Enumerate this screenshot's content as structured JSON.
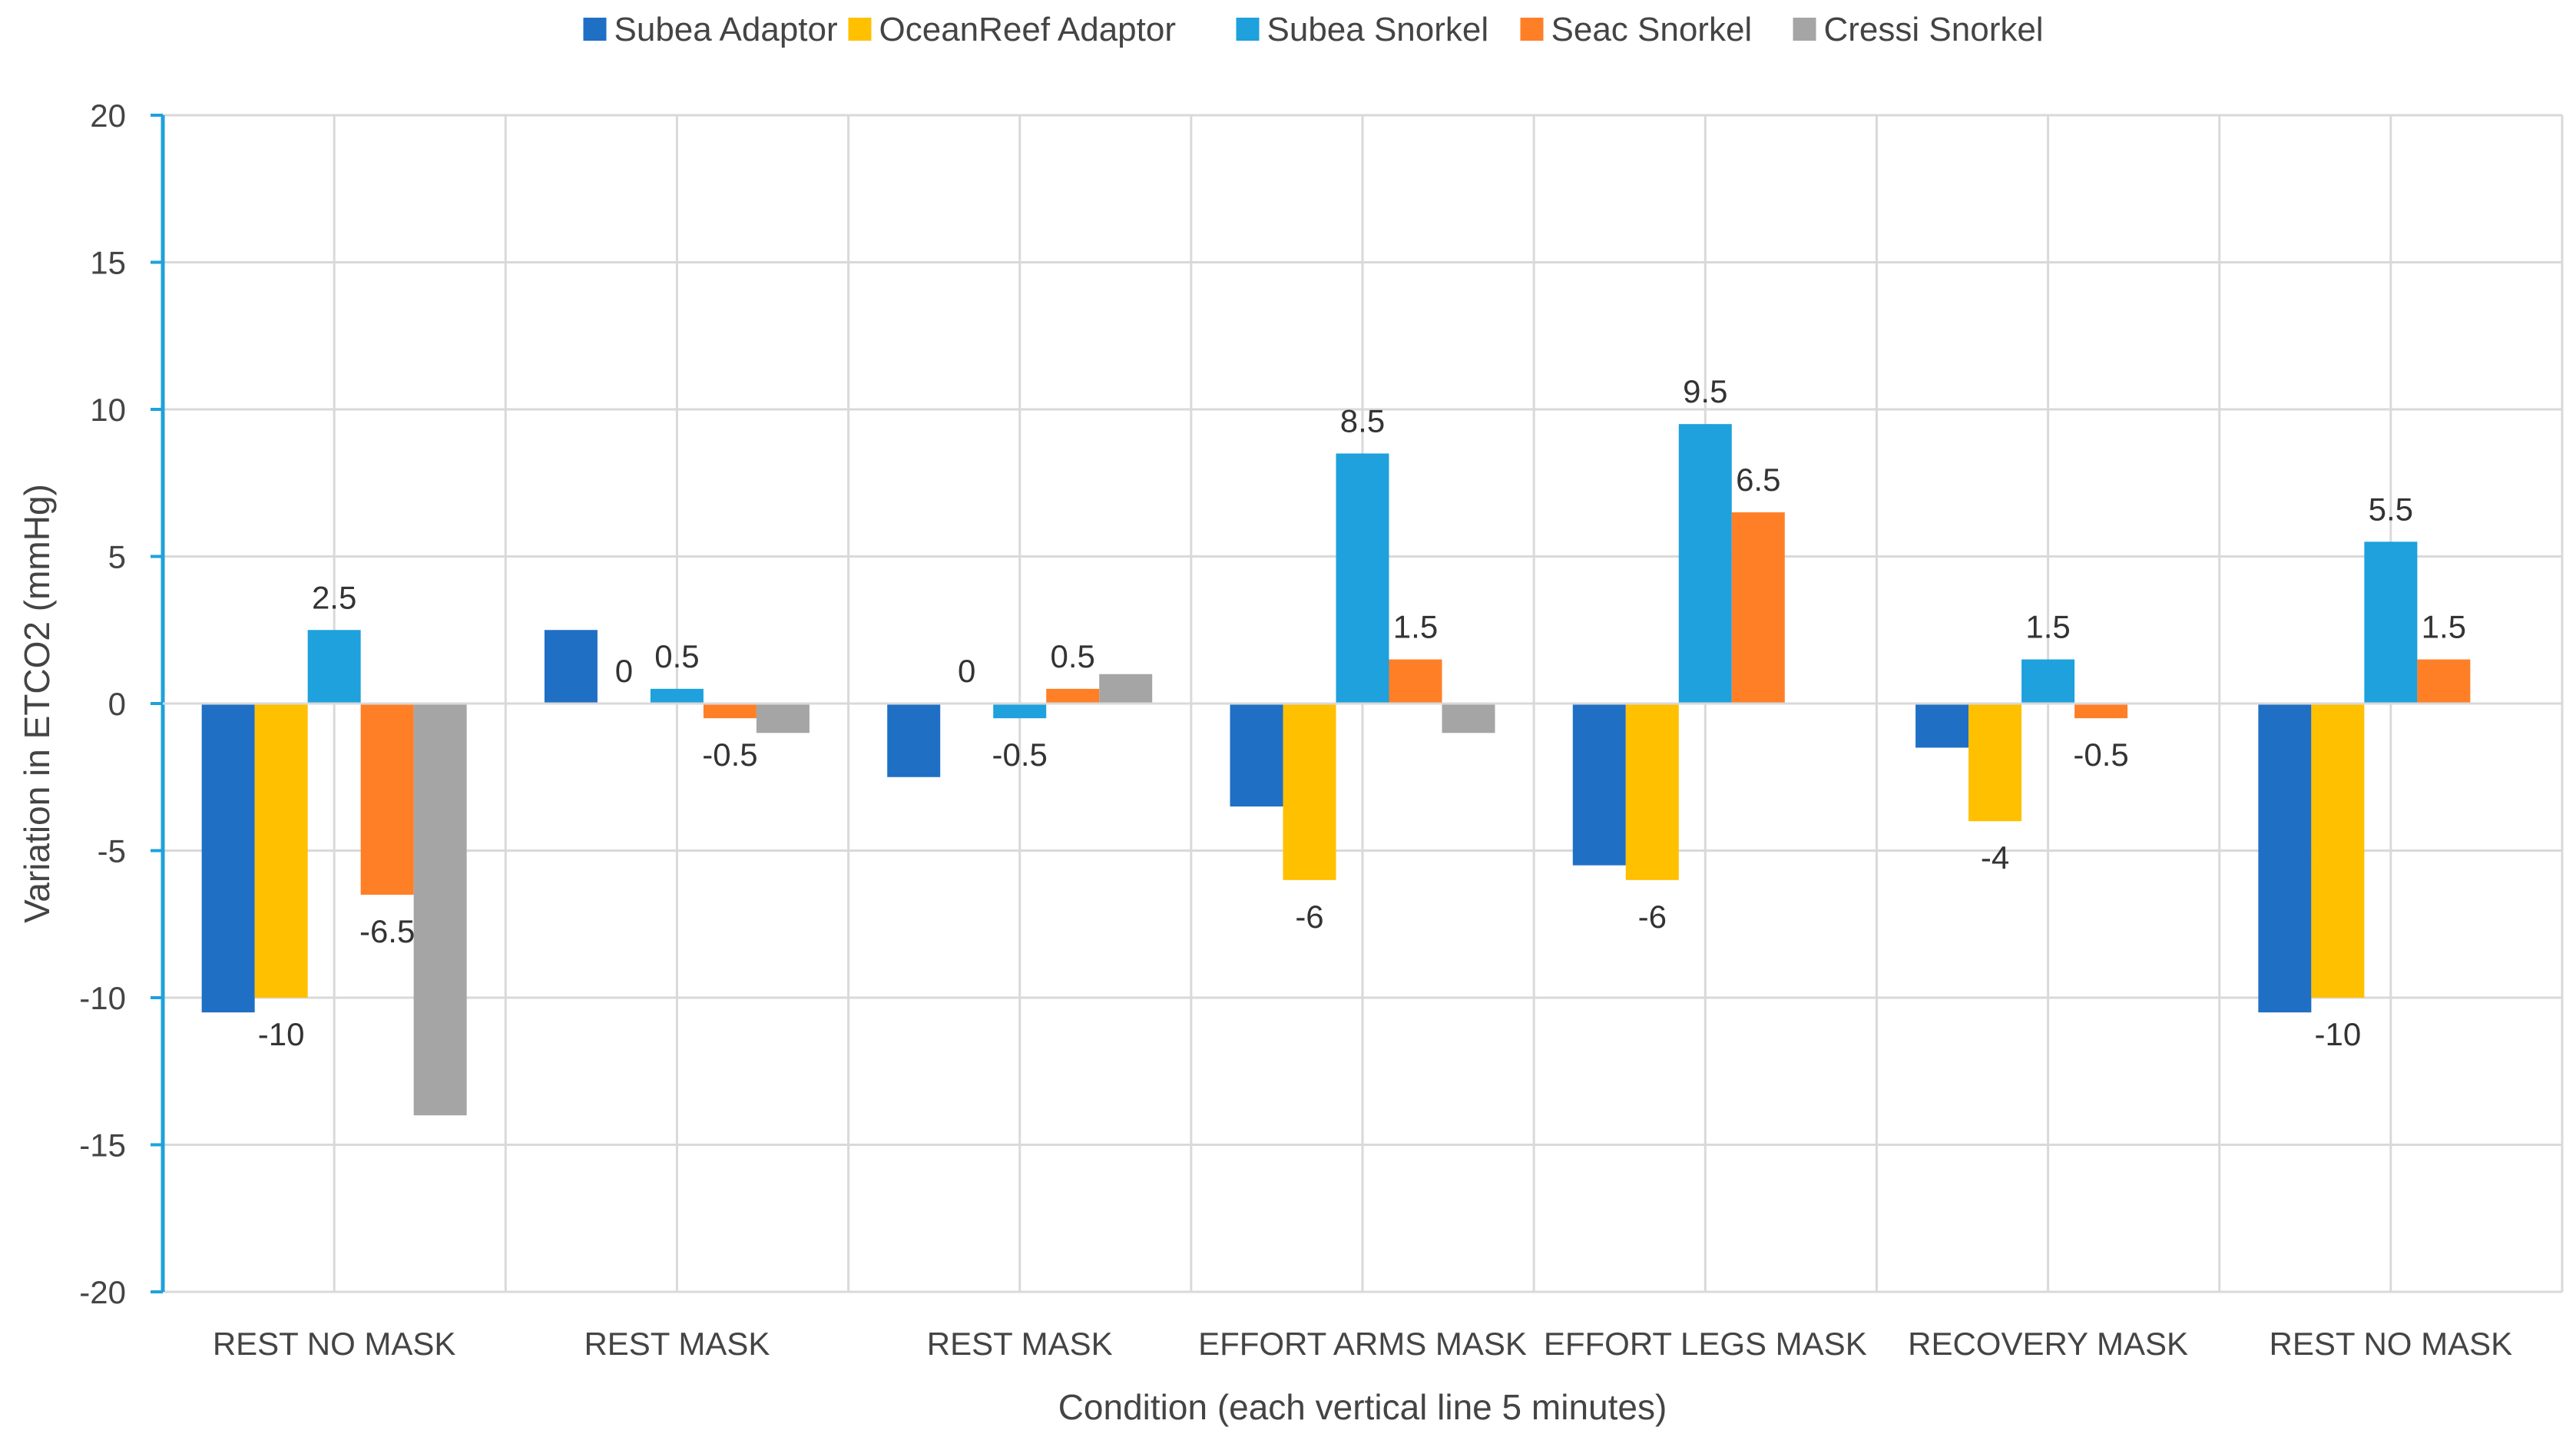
{
  "chart_data": {
    "type": "bar",
    "title": "",
    "xlabel": "Condition (each vertical line 5 minutes)",
    "ylabel": "Variation in ETCO2 (mmHg)",
    "ylim": [
      -20,
      20
    ],
    "yticks": [
      20,
      15,
      10,
      5,
      0,
      -5,
      -10,
      -15,
      -20
    ],
    "grid": true,
    "legend_position": "top",
    "categories": [
      "REST NO MASK",
      "REST MASK",
      "REST MASK",
      "EFFORT ARMS MASK",
      "EFFORT LEGS MASK",
      "RECOVERY MASK",
      "REST NO MASK"
    ],
    "series": [
      {
        "name": "Subea Adaptor",
        "color": "#1f6fc5",
        "values": [
          -10.5,
          2.5,
          -2.5,
          -3.5,
          -5.5,
          -1.5,
          -10.5
        ]
      },
      {
        "name": "OceanReef Adaptor",
        "color": "#ffc000",
        "values": [
          -10,
          0,
          0,
          -6,
          -6,
          -4,
          -10
        ]
      },
      {
        "name": "Subea Snorkel",
        "color": "#1ea1dc",
        "values": [
          2.5,
          0.5,
          -0.5,
          8.5,
          9.5,
          1.5,
          5.5
        ]
      },
      {
        "name": "Seac Snorkel",
        "color": "#ff7f27",
        "values": [
          -6.5,
          -0.5,
          0.5,
          1.5,
          6.5,
          -0.5,
          1.5
        ]
      },
      {
        "name": "Cressi Snorkel",
        "color": "#a5a5a5",
        "values": [
          -14,
          -1,
          1,
          -1,
          0,
          0,
          0
        ]
      }
    ],
    "data_labels": [
      {
        "category": 0,
        "series": 1,
        "text": "-10"
      },
      {
        "category": 0,
        "series": 2,
        "text": "2.5"
      },
      {
        "category": 0,
        "series": 3,
        "text": "-6.5"
      },
      {
        "category": 1,
        "series": 1,
        "text": "0"
      },
      {
        "category": 1,
        "series": 2,
        "text": "0.5"
      },
      {
        "category": 1,
        "series": 3,
        "text": "-0.5"
      },
      {
        "category": 2,
        "series": 1,
        "text": "0"
      },
      {
        "category": 2,
        "series": 2,
        "text": "-0.5"
      },
      {
        "category": 2,
        "series": 3,
        "text": "0.5"
      },
      {
        "category": 3,
        "series": 1,
        "text": "-6"
      },
      {
        "category": 3,
        "series": 2,
        "text": "8.5"
      },
      {
        "category": 3,
        "series": 3,
        "text": "1.5"
      },
      {
        "category": 4,
        "series": 1,
        "text": "-6"
      },
      {
        "category": 4,
        "series": 2,
        "text": "9.5"
      },
      {
        "category": 4,
        "series": 3,
        "text": "6.5"
      },
      {
        "category": 5,
        "series": 1,
        "text": "-4"
      },
      {
        "category": 5,
        "series": 2,
        "text": "1.5"
      },
      {
        "category": 5,
        "series": 3,
        "text": "-0.5"
      },
      {
        "category": 6,
        "series": 1,
        "text": "-10"
      },
      {
        "category": 6,
        "series": 2,
        "text": "5.5"
      },
      {
        "category": 6,
        "series": 3,
        "text": "1.5"
      }
    ]
  },
  "colors": {
    "axis": "#1ea1dc",
    "grid": "#d9d9d9",
    "text": "#444444"
  }
}
